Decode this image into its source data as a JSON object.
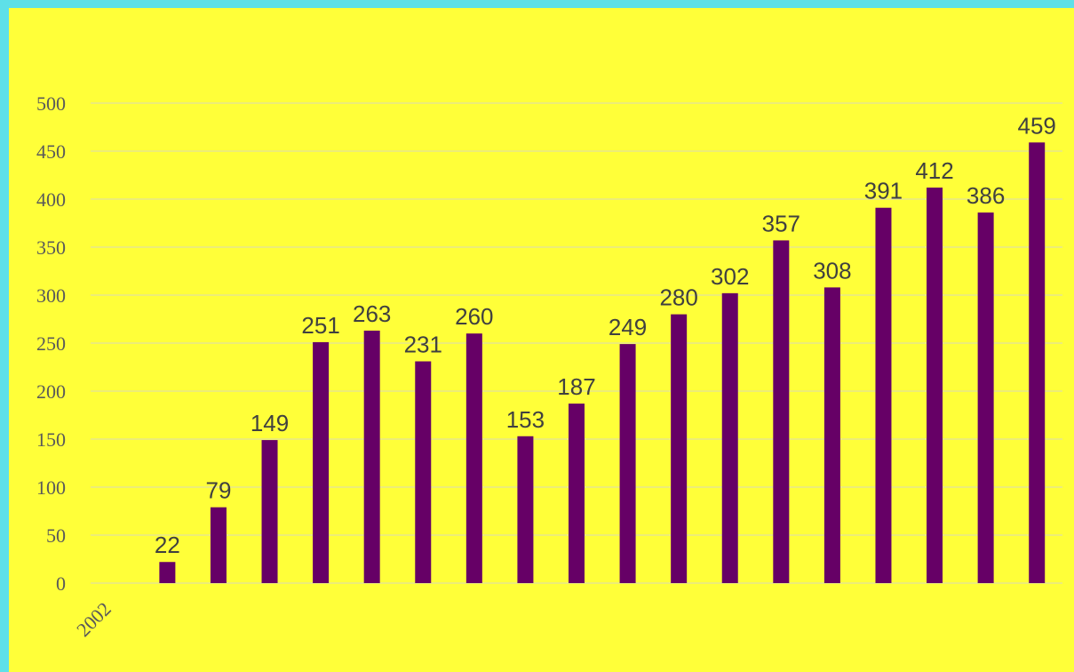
{
  "chart_data": {
    "type": "bar",
    "categories": [
      "2002",
      "",
      "",
      "",
      "",
      "",
      "",
      "",
      "",
      "",
      "",
      "",
      "",
      "",
      "",
      "",
      "",
      "",
      ""
    ],
    "values": [
      null,
      22,
      79,
      149,
      251,
      263,
      231,
      260,
      153,
      187,
      249,
      280,
      302,
      357,
      308,
      391,
      412,
      386,
      459
    ],
    "data_labels": [
      "",
      "22",
      "79",
      "149",
      "251",
      "263",
      "231",
      "260",
      "153",
      "187",
      "249",
      "280",
      "302",
      "357",
      "308",
      "391",
      "412",
      "386",
      "459"
    ],
    "y_ticks": [
      "0",
      "50",
      "100",
      "150",
      "200",
      "250",
      "300",
      "350",
      "400",
      "450",
      "500"
    ],
    "ylim": [
      0,
      500
    ],
    "grid": true,
    "colors": {
      "bar": "#660066",
      "background": "#ffff39",
      "border": "#5ee0e8"
    }
  }
}
